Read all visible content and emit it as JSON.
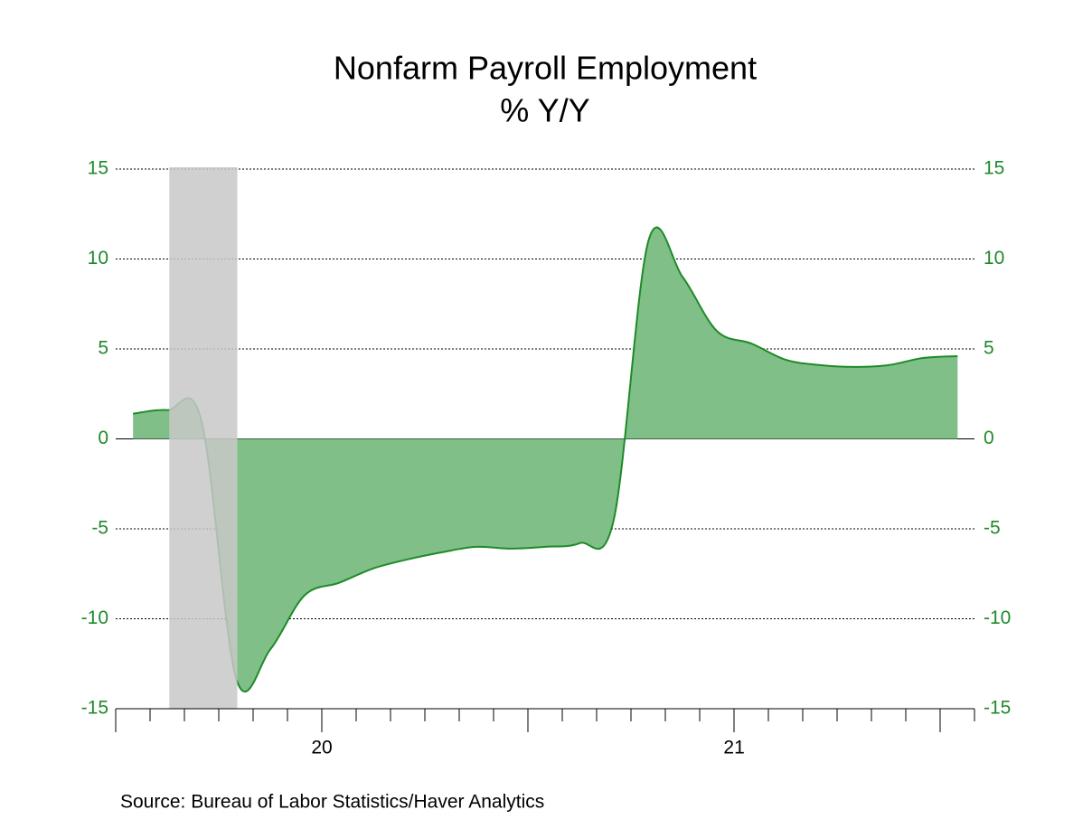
{
  "chart_data": {
    "type": "area",
    "title": "Nonfarm Payroll Employment",
    "subtitle": "% Y/Y",
    "source": "Source:  Bureau of Labor Statistics/Haver Analytics",
    "x": [
      20.042,
      20.125,
      20.208,
      20.292,
      20.375,
      20.458,
      20.542,
      20.625,
      20.708,
      20.792,
      20.875,
      20.958,
      21.042,
      21.125,
      21.208,
      21.292,
      21.375,
      21.458,
      21.542,
      21.625,
      21.708,
      21.792,
      21.875,
      21.958,
      22.042
    ],
    "series": [
      {
        "name": "Nonfarm Payroll Employment",
        "color": "#1e8a28",
        "fill": "#80c088",
        "values": [
          1.4,
          1.6,
          1.0,
          -13.3,
          -11.7,
          -8.7,
          -8.0,
          -7.2,
          -6.7,
          -6.3,
          -6.0,
          -6.1,
          -6.0,
          -5.8,
          -4.5,
          11.0,
          9.0,
          6.0,
          5.3,
          4.4,
          4.1,
          4.0,
          4.1,
          4.5,
          4.6
        ]
      }
    ],
    "shaded_region": [
      20.13,
      20.295
    ],
    "xlim": [
      20,
      22.083
    ],
    "xticks": [
      {
        "value": 20.5,
        "label": "20"
      },
      {
        "value": 21.5,
        "label": "21"
      }
    ],
    "ylim": [
      -15,
      15
    ],
    "yticks": [
      -15,
      -10,
      -5,
      0,
      5,
      10,
      15
    ],
    "grid": true
  }
}
